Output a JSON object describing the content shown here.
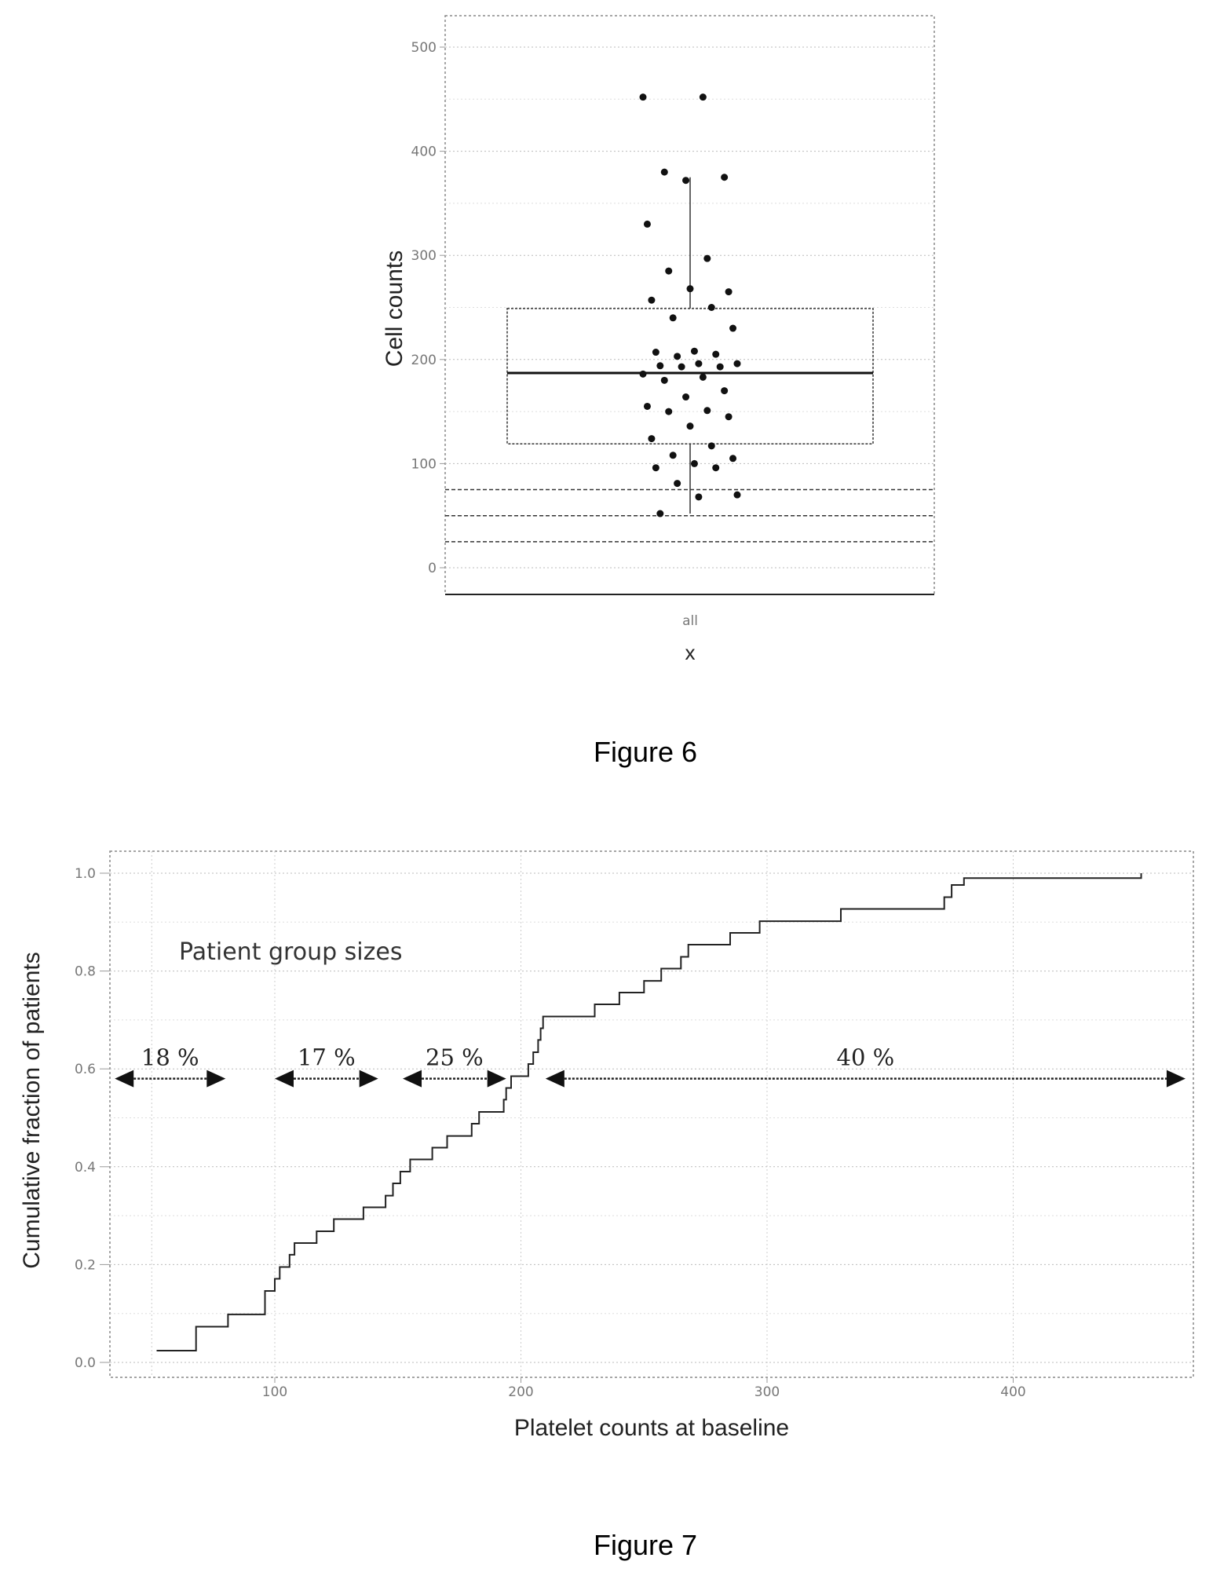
{
  "figures": [
    {
      "caption": "Figure 6"
    },
    {
      "caption": "Figure 7"
    }
  ],
  "chart_data": [
    {
      "type": "box",
      "ylabel": "Cell counts",
      "xlabel": "x",
      "categories": [
        "all"
      ],
      "yticks": [
        0,
        100,
        200,
        300,
        400,
        500
      ],
      "ylim": [
        -25,
        525
      ],
      "grid": true,
      "reference_lines": [
        25,
        50,
        75
      ],
      "box": {
        "whisker_low": 52,
        "q1": 119,
        "median": 187,
        "q3": 249,
        "whisker_high": 375
      },
      "points": [
        452,
        452,
        380,
        375,
        372,
        330,
        297,
        285,
        265,
        268,
        257,
        250,
        240,
        230,
        208,
        207,
        205,
        203,
        196,
        196,
        194,
        193,
        193,
        186,
        183,
        180,
        170,
        164,
        155,
        151,
        150,
        145,
        136,
        124,
        117,
        108,
        105,
        100,
        96,
        96,
        81,
        70,
        68,
        52
      ]
    },
    {
      "type": "line",
      "step": true,
      "xlabel": "Platelet counts at baseline",
      "ylabel": "Cumulative fraction of patients",
      "xticks": [
        100,
        200,
        300,
        400
      ],
      "yticks": [
        0.0,
        0.2,
        0.4,
        0.6,
        0.8,
        1.0
      ],
      "ytick_labels": [
        "0.0",
        "0.2",
        "0.4",
        "0.6",
        "0.8",
        "1.0"
      ],
      "xlim": [
        35,
        475
      ],
      "ylim": [
        -0.03,
        1.05
      ],
      "grid": true,
      "step_points": [
        [
          52,
          0.024
        ],
        [
          68,
          0.024
        ],
        [
          68,
          0.073
        ],
        [
          81,
          0.073
        ],
        [
          81,
          0.098
        ],
        [
          96,
          0.098
        ],
        [
          96,
          0.146
        ],
        [
          100,
          0.146
        ],
        [
          100,
          0.171
        ],
        [
          102,
          0.171
        ],
        [
          102,
          0.195
        ],
        [
          106,
          0.195
        ],
        [
          106,
          0.22
        ],
        [
          108,
          0.22
        ],
        [
          108,
          0.244
        ],
        [
          117,
          0.244
        ],
        [
          117,
          0.268
        ],
        [
          124,
          0.268
        ],
        [
          124,
          0.293
        ],
        [
          136,
          0.293
        ],
        [
          136,
          0.317
        ],
        [
          145,
          0.317
        ],
        [
          145,
          0.341
        ],
        [
          148,
          0.341
        ],
        [
          148,
          0.366
        ],
        [
          151,
          0.366
        ],
        [
          151,
          0.39
        ],
        [
          155,
          0.39
        ],
        [
          155,
          0.415
        ],
        [
          164,
          0.415
        ],
        [
          164,
          0.439
        ],
        [
          170,
          0.439
        ],
        [
          170,
          0.463
        ],
        [
          180,
          0.463
        ],
        [
          180,
          0.488
        ],
        [
          183,
          0.488
        ],
        [
          183,
          0.512
        ],
        [
          193,
          0.512
        ],
        [
          193,
          0.537
        ],
        [
          194,
          0.537
        ],
        [
          194,
          0.561
        ],
        [
          196,
          0.561
        ],
        [
          196,
          0.585
        ],
        [
          203,
          0.585
        ],
        [
          203,
          0.61
        ],
        [
          205,
          0.61
        ],
        [
          205,
          0.634
        ],
        [
          207,
          0.634
        ],
        [
          207,
          0.659
        ],
        [
          208,
          0.659
        ],
        [
          208,
          0.683
        ],
        [
          209,
          0.683
        ],
        [
          209,
          0.707
        ],
        [
          230,
          0.707
        ],
        [
          230,
          0.732
        ],
        [
          240,
          0.732
        ],
        [
          240,
          0.756
        ],
        [
          250,
          0.756
        ],
        [
          250,
          0.78
        ],
        [
          257,
          0.78
        ],
        [
          257,
          0.805
        ],
        [
          265,
          0.805
        ],
        [
          265,
          0.829
        ],
        [
          268,
          0.829
        ],
        [
          268,
          0.854
        ],
        [
          285,
          0.854
        ],
        [
          285,
          0.878
        ],
        [
          297,
          0.878
        ],
        [
          297,
          0.902
        ],
        [
          330,
          0.902
        ],
        [
          330,
          0.927
        ],
        [
          372,
          0.927
        ],
        [
          372,
          0.951
        ],
        [
          375,
          0.951
        ],
        [
          375,
          0.976
        ],
        [
          380,
          0.976
        ],
        [
          380,
          0.99
        ],
        [
          452,
          0.99
        ],
        [
          452,
          1.0
        ]
      ],
      "annotation_title": "Patient group sizes",
      "group_arrows": [
        {
          "label": "18 %",
          "x_start": 35,
          "x_end": 80,
          "y": 0.58
        },
        {
          "label": "17 %",
          "x_start": 100,
          "x_end": 142,
          "y": 0.58
        },
        {
          "label": "25 %",
          "x_start": 152,
          "x_end": 194,
          "y": 0.58
        },
        {
          "label": "40 %",
          "x_start": 210,
          "x_end": 470,
          "y": 0.58
        }
      ]
    }
  ]
}
